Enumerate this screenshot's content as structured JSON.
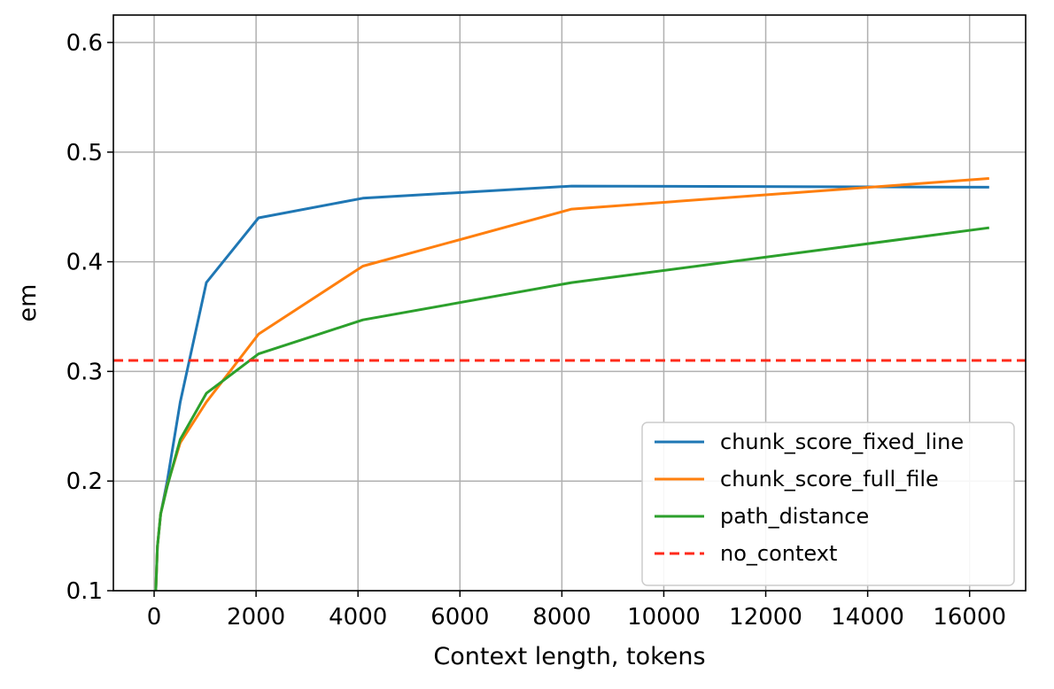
{
  "chart_data": {
    "type": "line",
    "title": "",
    "xlabel": "Context length, tokens",
    "ylabel": "em",
    "xlim": [
      -800,
      17100
    ],
    "ylim": [
      0.1,
      0.625
    ],
    "xticks": [
      0,
      2000,
      4000,
      6000,
      8000,
      10000,
      12000,
      14000,
      16000
    ],
    "yticks": [
      0.1,
      0.2,
      0.3,
      0.4,
      0.5,
      0.6
    ],
    "xtick_labels": [
      "0",
      "2000",
      "4000",
      "6000",
      "8000",
      "10000",
      "12000",
      "14000",
      "16000"
    ],
    "ytick_labels": [
      "0.1",
      "0.2",
      "0.3",
      "0.4",
      "0.5",
      "0.6"
    ],
    "grid": true,
    "legend_position": "lower-right",
    "series": [
      {
        "name": "chunk_score_fixed_line",
        "color": "#1f77b4",
        "style": "solid",
        "x": [
          32,
          64,
          128,
          256,
          512,
          1024,
          2048,
          4096,
          8192,
          16384
        ],
        "y": [
          0.1,
          0.14,
          0.17,
          0.2,
          0.272,
          0.381,
          0.44,
          0.458,
          0.469,
          0.468
        ]
      },
      {
        "name": "chunk_score_full_file",
        "color": "#ff7f0e",
        "style": "solid",
        "x": [
          32,
          64,
          128,
          256,
          512,
          1024,
          2048,
          4096,
          8192,
          16384
        ],
        "y": [
          0.1,
          0.14,
          0.17,
          0.196,
          0.235,
          0.272,
          0.334,
          0.396,
          0.448,
          0.476
        ]
      },
      {
        "name": "path_distance",
        "color": "#2ca02c",
        "style": "solid",
        "x": [
          32,
          64,
          128,
          256,
          512,
          1024,
          2048,
          4096,
          8192,
          16384
        ],
        "y": [
          0.1,
          0.14,
          0.17,
          0.195,
          0.238,
          0.28,
          0.316,
          0.347,
          0.381,
          0.431
        ]
      },
      {
        "name": "no_context",
        "color": "#ff2a1a",
        "style": "dashed",
        "y_constant": 0.31
      }
    ]
  }
}
